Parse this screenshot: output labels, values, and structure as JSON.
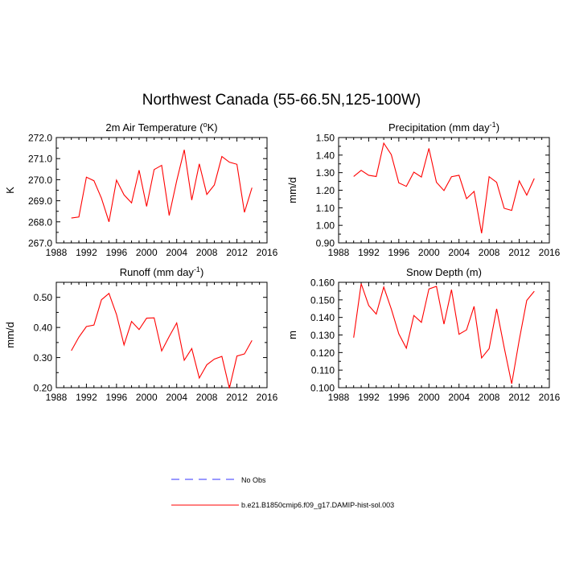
{
  "figure": {
    "title": "Northwest Canada (55-66.5N,125-100W)"
  },
  "chart_data": [
    {
      "type": "line",
      "title_parts": [
        "2m Air Temperature (",
        "o",
        "K)"
      ],
      "ylabel": "K",
      "xlim": [
        1988,
        2016
      ],
      "ylim": [
        267.0,
        272.0
      ],
      "xticks": [
        1988,
        1992,
        1996,
        2000,
        2004,
        2008,
        2012,
        2016
      ],
      "yticks": [
        "267.0",
        "268.0",
        "269.0",
        "270.0",
        "271.0",
        "272.0"
      ],
      "x": [
        1990,
        1991,
        1992,
        1993,
        1994,
        1995,
        1996,
        1997,
        1998,
        1999,
        2000,
        2001,
        2002,
        2003,
        2004,
        2005,
        2006,
        2007,
        2008,
        2009,
        2010,
        2011,
        2012,
        2013,
        2014
      ],
      "series": [
        {
          "color": "#ff0000",
          "values": [
            268.18,
            268.23,
            270.12,
            269.95,
            269.12,
            268.0,
            269.98,
            269.28,
            268.9,
            270.45,
            268.73,
            270.48,
            270.68,
            268.3,
            269.95,
            271.42,
            269.03,
            270.75,
            269.3,
            269.75,
            271.1,
            270.83,
            270.73,
            268.45,
            269.62
          ]
        }
      ]
    },
    {
      "type": "line",
      "title_parts": [
        "Precipitation (mm day",
        "-1",
        ")"
      ],
      "ylabel": "mm/d",
      "xlim": [
        1988,
        2016
      ],
      "ylim": [
        0.9,
        1.5
      ],
      "xticks": [
        1988,
        1992,
        1996,
        2000,
        2004,
        2008,
        2012,
        2016
      ],
      "yticks": [
        "0.90",
        "1.00",
        "1.10",
        "1.20",
        "1.30",
        "1.40",
        "1.50"
      ],
      "x": [
        1990,
        1991,
        1992,
        1993,
        1994,
        1995,
        1996,
        1997,
        1998,
        1999,
        2000,
        2001,
        2002,
        2003,
        2004,
        2005,
        2006,
        2007,
        2008,
        2009,
        2010,
        2011,
        2012,
        2013,
        2014
      ],
      "series": [
        {
          "color": "#ff0000",
          "values": [
            1.278,
            1.313,
            1.285,
            1.278,
            1.468,
            1.403,
            1.242,
            1.222,
            1.303,
            1.275,
            1.438,
            1.245,
            1.198,
            1.277,
            1.285,
            1.152,
            1.193,
            0.955,
            1.277,
            1.245,
            1.097,
            1.085,
            1.253,
            1.172,
            1.267
          ]
        }
      ]
    },
    {
      "type": "line",
      "title_parts": [
        "Runoff (mm day",
        "-1",
        ")"
      ],
      "ylabel": "mm/d",
      "xlim": [
        1988,
        2016
      ],
      "ylim": [
        0.2,
        0.55
      ],
      "xticks": [
        1988,
        1992,
        1996,
        2000,
        2004,
        2008,
        2012,
        2016
      ],
      "yticks": [
        "0.20",
        "0.30",
        "0.40",
        "0.50"
      ],
      "x": [
        1990,
        1991,
        1992,
        1993,
        1994,
        1995,
        1996,
        1997,
        1998,
        1999,
        2000,
        2001,
        2002,
        2003,
        2004,
        2005,
        2006,
        2007,
        2008,
        2009,
        2010,
        2011,
        2012,
        2013,
        2014
      ],
      "series": [
        {
          "color": "#ff0000",
          "values": [
            0.323,
            0.368,
            0.403,
            0.408,
            0.492,
            0.513,
            0.443,
            0.342,
            0.42,
            0.393,
            0.431,
            0.432,
            0.322,
            0.37,
            0.415,
            0.291,
            0.33,
            0.232,
            0.276,
            0.295,
            0.304,
            0.198,
            0.305,
            0.312,
            0.357
          ]
        }
      ]
    },
    {
      "type": "line",
      "title_parts": [
        "Snow Depth (m)"
      ],
      "ylabel": "m",
      "xlim": [
        1988,
        2016
      ],
      "ylim": [
        0.1,
        0.16
      ],
      "xticks": [
        1988,
        1992,
        1996,
        2000,
        2004,
        2008,
        2012,
        2016
      ],
      "yticks": [
        "0.100",
        "0.110",
        "0.120",
        "0.130",
        "0.140",
        "0.150",
        "0.160"
      ],
      "x": [
        1990,
        1991,
        1992,
        1993,
        1994,
        1995,
        1996,
        1997,
        1998,
        1999,
        2000,
        2001,
        2002,
        2003,
        2004,
        2005,
        2006,
        2007,
        2008,
        2009,
        2010,
        2011,
        2012,
        2013,
        2014
      ],
      "series": [
        {
          "color": "#ff0000",
          "values": [
            0.1285,
            0.1592,
            0.1468,
            0.1419,
            0.1573,
            0.1448,
            0.1306,
            0.1225,
            0.1411,
            0.1372,
            0.1562,
            0.1577,
            0.1362,
            0.1558,
            0.1304,
            0.1329,
            0.1463,
            0.1169,
            0.1222,
            0.1449,
            0.1229,
            0.1022,
            0.1271,
            0.1497,
            0.1549
          ]
        }
      ]
    }
  ],
  "legend": {
    "items": [
      {
        "label": "No Obs",
        "color": "#3333ff",
        "style": "dashed"
      },
      {
        "label": "b.e21.B1850cmip6.f09_g17.DAMIP-hist-sol.003",
        "color": "#ff0000",
        "style": "solid"
      }
    ]
  }
}
